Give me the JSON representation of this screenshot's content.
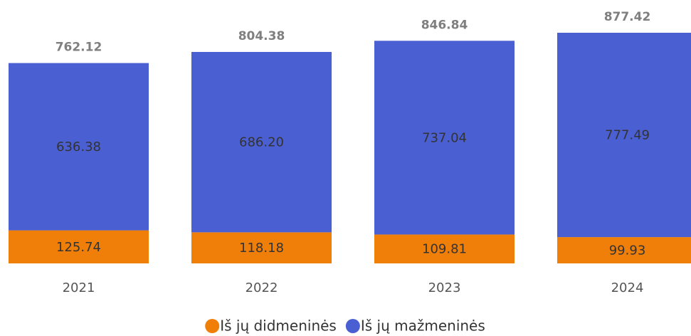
{
  "chart_data": {
    "type": "stacked_bar",
    "categories": [
      "2021",
      "2022",
      "2023",
      "2024"
    ],
    "series": [
      {
        "name": "Iš jų didmeninės",
        "color": "#f07f09",
        "values": [
          125.74,
          118.18,
          109.81,
          99.93
        ]
      },
      {
        "name": "Iš jų mažmeninės",
        "color": "#4a5fd1",
        "values": [
          636.38,
          686.2,
          737.04,
          777.49
        ],
        "value_labels": [
          "636.38",
          "686.20",
          "737.04",
          "777.49"
        ]
      }
    ],
    "totals": [
      762.12,
      804.38,
      846.84,
      877.42
    ],
    "legend": "bottom"
  }
}
